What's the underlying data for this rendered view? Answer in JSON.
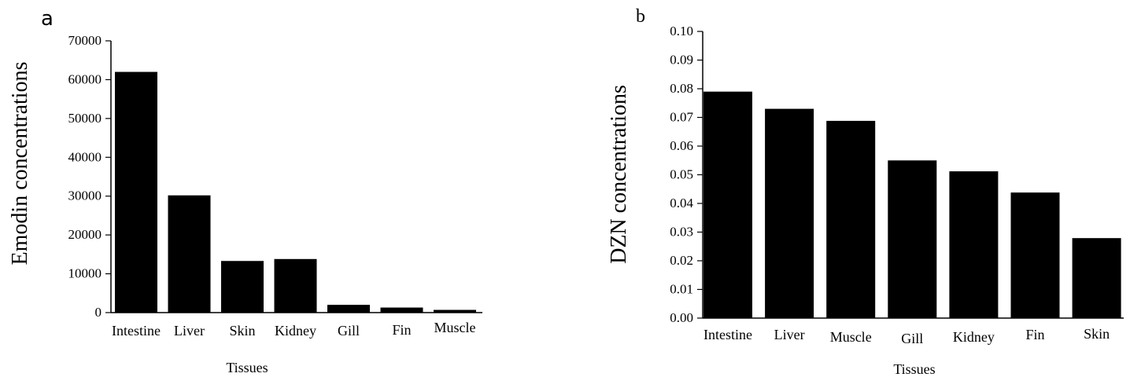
{
  "chart_data": [
    {
      "panel_label": "a",
      "type": "bar",
      "categories": [
        "Intestine",
        "Liver",
        "Skin",
        "Kidney",
        "Gill",
        "Fin",
        "Muscle"
      ],
      "values": [
        62000,
        30200,
        13300,
        13800,
        2000,
        1300,
        700
      ],
      "xlabel": "Tissues",
      "ylabel": "Emodin concentrations",
      "ylim": [
        0,
        70000
      ],
      "yticks": [
        "0",
        "10000",
        "20000",
        "30000",
        "40000",
        "50000",
        "60000",
        "70000"
      ],
      "bar_color": "#000000",
      "grid": false
    },
    {
      "panel_label": "b",
      "type": "bar",
      "categories": [
        "Intestine",
        "Liver",
        "Muscle",
        "Gill",
        "Kidney",
        "Fin",
        "Skin"
      ],
      "values": [
        0.079,
        0.073,
        0.0688,
        0.055,
        0.0512,
        0.0438,
        0.0279
      ],
      "xlabel": "Tissues",
      "ylabel": "DZN concentrations",
      "ylim": [
        0,
        0.1
      ],
      "yticks": [
        "0.00",
        "0.01",
        "0.02",
        "0.03",
        "0.04",
        "0.05",
        "0.06",
        "0.07",
        "0.08",
        "0.09",
        "0.10"
      ],
      "bar_color": "#000000",
      "grid": false
    }
  ]
}
